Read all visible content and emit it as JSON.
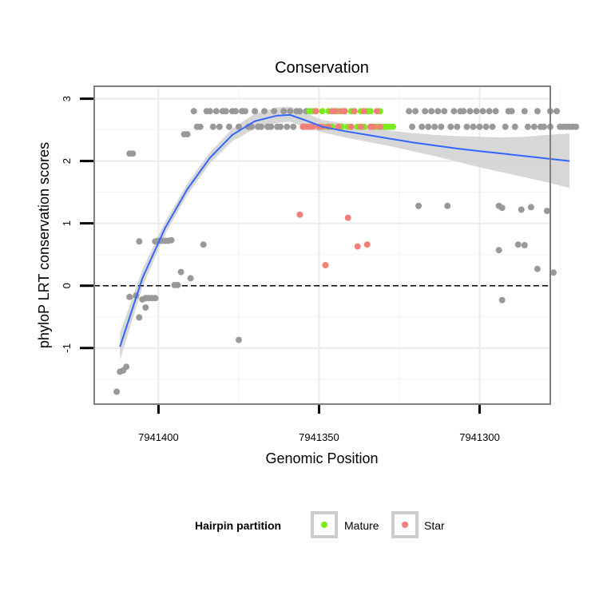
{
  "chart_data": {
    "type": "scatter",
    "title": "Conservation",
    "xlabel": "Genomic Position",
    "ylabel": "phyloP LRT conservation scores",
    "x_reversed": true,
    "xlim": [
      7941420,
      7941278
    ],
    "ylim": [
      -1.9,
      3.2
    ],
    "x_ticks": [
      7941400,
      7941350,
      7941300
    ],
    "x_tick_labels": [
      "7941400",
      "7941350",
      "7941300"
    ],
    "y_ticks": [
      -1,
      0,
      1,
      2,
      3
    ],
    "y_tick_labels": [
      "-1",
      "0",
      "1",
      "2",
      "3"
    ],
    "grid": true,
    "reference_line": {
      "y": 0,
      "style": "dashed"
    },
    "colors": {
      "other": "#999999",
      "mature": "#7cea1e",
      "star": "#f08078",
      "smooth": "#3366ff",
      "band": "#d3d3d3",
      "panel_border": "#7f7f7f",
      "grid": "#f2f2f2"
    },
    "legend": {
      "title": "Hairpin partition",
      "position": "bottom",
      "entries": [
        {
          "name": "Mature",
          "color": "#7cea1e"
        },
        {
          "name": "Star",
          "color": "#f08078"
        }
      ]
    },
    "series": [
      {
        "name": "other",
        "points": [
          [
            7941413,
            -1.7
          ],
          [
            7941412,
            -1.38
          ],
          [
            7941411,
            -1.36
          ],
          [
            7941410,
            -1.3
          ],
          [
            7941409,
            2.12
          ],
          [
            7941408,
            2.12
          ],
          [
            7941409,
            -0.18
          ],
          [
            7941407,
            -0.16
          ],
          [
            7941406,
            0.71
          ],
          [
            7941406,
            -0.51
          ],
          [
            7941405,
            -0.22
          ],
          [
            7941404,
            -0.35
          ],
          [
            7941404,
            -0.2
          ],
          [
            7941403,
            -0.2
          ],
          [
            7941402,
            -0.2
          ],
          [
            7941401,
            -0.2
          ],
          [
            7941401,
            0.71
          ],
          [
            7941400,
            0.72
          ],
          [
            7941399,
            0.72
          ],
          [
            7941398,
            0.72
          ],
          [
            7941397,
            0.72
          ],
          [
            7941396,
            0.73
          ],
          [
            7941395,
            0.01
          ],
          [
            7941394,
            0.01
          ],
          [
            7941393,
            0.22
          ],
          [
            7941392,
            2.43
          ],
          [
            7941391,
            2.43
          ],
          [
            7941390,
            0.12
          ],
          [
            7941389,
            2.8
          ],
          [
            7941388,
            2.55
          ],
          [
            7941387,
            2.55
          ],
          [
            7941386,
            0.66
          ],
          [
            7941385,
            2.8
          ],
          [
            7941384,
            2.8
          ],
          [
            7941383,
            2.55
          ],
          [
            7941382,
            2.8
          ],
          [
            7941381,
            2.55
          ],
          [
            7941380,
            2.8
          ],
          [
            7941379,
            2.8
          ],
          [
            7941378,
            2.55
          ],
          [
            7941377,
            2.8
          ],
          [
            7941376,
            2.8
          ],
          [
            7941375,
            2.55
          ],
          [
            7941375,
            -0.87
          ],
          [
            7941374,
            2.8
          ],
          [
            7941373,
            2.8
          ],
          [
            7941372,
            2.55
          ],
          [
            7941371,
            2.55
          ],
          [
            7941370,
            2.8
          ],
          [
            7941369,
            2.55
          ],
          [
            7941368,
            2.55
          ],
          [
            7941367,
            2.8
          ],
          [
            7941366,
            2.55
          ],
          [
            7941365,
            2.55
          ],
          [
            7941364,
            2.8
          ],
          [
            7941363,
            2.55
          ],
          [
            7941362,
            2.55
          ],
          [
            7941361,
            2.8
          ],
          [
            7941360,
            2.55
          ],
          [
            7941359,
            2.8
          ],
          [
            7941358,
            2.55
          ],
          [
            7941357,
            2.8
          ],
          [
            7941356,
            2.8
          ],
          [
            7941355,
            2.55
          ],
          [
            7941354,
            2.8
          ],
          [
            7941322,
            2.8
          ],
          [
            7941321,
            2.55
          ],
          [
            7941320,
            2.8
          ],
          [
            7941319,
            1.28
          ],
          [
            7941318,
            2.55
          ],
          [
            7941317,
            2.8
          ],
          [
            7941316,
            2.55
          ],
          [
            7941315,
            2.8
          ],
          [
            7941314,
            2.55
          ],
          [
            7941313,
            2.8
          ],
          [
            7941312,
            2.55
          ],
          [
            7941311,
            2.8
          ],
          [
            7941310,
            1.28
          ],
          [
            7941309,
            2.55
          ],
          [
            7941308,
            2.8
          ],
          [
            7941307,
            2.55
          ],
          [
            7941306,
            2.8
          ],
          [
            7941305,
            2.8
          ],
          [
            7941304,
            2.55
          ],
          [
            7941303,
            2.8
          ],
          [
            7941302,
            2.55
          ],
          [
            7941301,
            2.8
          ],
          [
            7941300,
            2.55
          ],
          [
            7941299,
            2.8
          ],
          [
            7941298,
            2.55
          ],
          [
            7941297,
            2.8
          ],
          [
            7941296,
            2.55
          ],
          [
            7941295,
            2.8
          ],
          [
            7941294,
            1.28
          ],
          [
            7941294,
            0.57
          ],
          [
            7941293,
            1.25
          ],
          [
            7941293,
            -0.23
          ],
          [
            7941292,
            2.55
          ],
          [
            7941291,
            2.8
          ],
          [
            7941290,
            2.8
          ],
          [
            7941289,
            2.55
          ],
          [
            7941288,
            0.66
          ],
          [
            7941287,
            1.22
          ],
          [
            7941286,
            2.8
          ],
          [
            7941286,
            0.65
          ],
          [
            7941285,
            2.55
          ],
          [
            7941284,
            1.26
          ],
          [
            7941283,
            2.55
          ],
          [
            7941282,
            2.8
          ],
          [
            7941282,
            0.27
          ],
          [
            7941281,
            2.55
          ],
          [
            7941280,
            2.55
          ],
          [
            7941279,
            1.2
          ],
          [
            7941278,
            2.8
          ],
          [
            7941278,
            2.55
          ],
          [
            7941277,
            0.21
          ],
          [
            7941276,
            2.8
          ],
          [
            7941275,
            2.55
          ],
          [
            7941274,
            2.55
          ],
          [
            7941273,
            2.55
          ],
          [
            7941272,
            2.55
          ],
          [
            7941271,
            2.55
          ],
          [
            7941270,
            2.55
          ]
        ]
      },
      {
        "name": "Mature",
        "points": [
          [
            7941353,
            2.8
          ],
          [
            7941352,
            2.8
          ],
          [
            7941351,
            2.8
          ],
          [
            7941350,
            2.55
          ],
          [
            7941349,
            2.8
          ],
          [
            7941348,
            2.55
          ],
          [
            7941347,
            2.8
          ],
          [
            7941346,
            2.55
          ],
          [
            7941345,
            2.8
          ],
          [
            7941344,
            2.8
          ],
          [
            7941343,
            2.55
          ],
          [
            7941342,
            2.8
          ],
          [
            7941341,
            2.55
          ],
          [
            7941340,
            2.8
          ],
          [
            7941339,
            2.8
          ],
          [
            7941338,
            2.55
          ],
          [
            7941337,
            2.8
          ],
          [
            7941336,
            2.55
          ],
          [
            7941335,
            2.8
          ],
          [
            7941334,
            2.8
          ],
          [
            7941333,
            2.55
          ],
          [
            7941332,
            2.55
          ],
          [
            7941331,
            2.8
          ],
          [
            7941330,
            2.55
          ],
          [
            7941329,
            2.55
          ],
          [
            7941328,
            2.55
          ],
          [
            7941327,
            2.55
          ]
        ]
      },
      {
        "name": "Star",
        "points": [
          [
            7941356,
            1.14
          ],
          [
            7941355,
            2.55
          ],
          [
            7941354,
            2.55
          ],
          [
            7941353,
            2.55
          ],
          [
            7941352,
            2.55
          ],
          [
            7941351,
            2.8
          ],
          [
            7941350,
            2.55
          ],
          [
            7941349,
            2.55
          ],
          [
            7941348,
            0.33
          ],
          [
            7941347,
            2.55
          ],
          [
            7941346,
            2.8
          ],
          [
            7941345,
            2.8
          ],
          [
            7941344,
            2.55
          ],
          [
            7941343,
            2.8
          ],
          [
            7941342,
            2.8
          ],
          [
            7941341,
            1.09
          ],
          [
            7941340,
            2.55
          ],
          [
            7941339,
            2.8
          ],
          [
            7941338,
            0.63
          ],
          [
            7941337,
            2.55
          ],
          [
            7941336,
            2.8
          ],
          [
            7941335,
            0.66
          ],
          [
            7941334,
            2.55
          ],
          [
            7941333,
            2.55
          ],
          [
            7941332,
            2.8
          ],
          [
            7941331,
            2.55
          ]
        ]
      }
    ],
    "smooth": {
      "name": "loess",
      "x": [
        7941412,
        7941405,
        7941398,
        7941391,
        7941384,
        7941377,
        7941370,
        7941363,
        7941359,
        7941354,
        7941349,
        7941342,
        7941335,
        7941328,
        7941321,
        7941314,
        7941307,
        7941300,
        7941293,
        7941286,
        7941279,
        7941272
      ],
      "y": [
        -0.98,
        0.12,
        0.92,
        1.55,
        2.05,
        2.42,
        2.64,
        2.73,
        2.74,
        2.65,
        2.55,
        2.48,
        2.42,
        2.36,
        2.3,
        2.25,
        2.2,
        2.16,
        2.12,
        2.08,
        2.04,
        2.0
      ],
      "lower": [
        -1.2,
        -0.02,
        0.82,
        1.46,
        1.96,
        2.32,
        2.52,
        2.61,
        2.63,
        2.54,
        2.46,
        2.38,
        2.31,
        2.24,
        2.16,
        2.08,
        1.99,
        1.9,
        1.82,
        1.74,
        1.66,
        1.57
      ],
      "upper": [
        -0.76,
        0.26,
        1.02,
        1.64,
        2.14,
        2.52,
        2.76,
        2.86,
        2.87,
        2.77,
        2.66,
        2.6,
        2.54,
        2.49,
        2.45,
        2.42,
        2.4,
        2.39,
        2.38,
        2.39,
        2.42,
        2.44
      ]
    }
  }
}
